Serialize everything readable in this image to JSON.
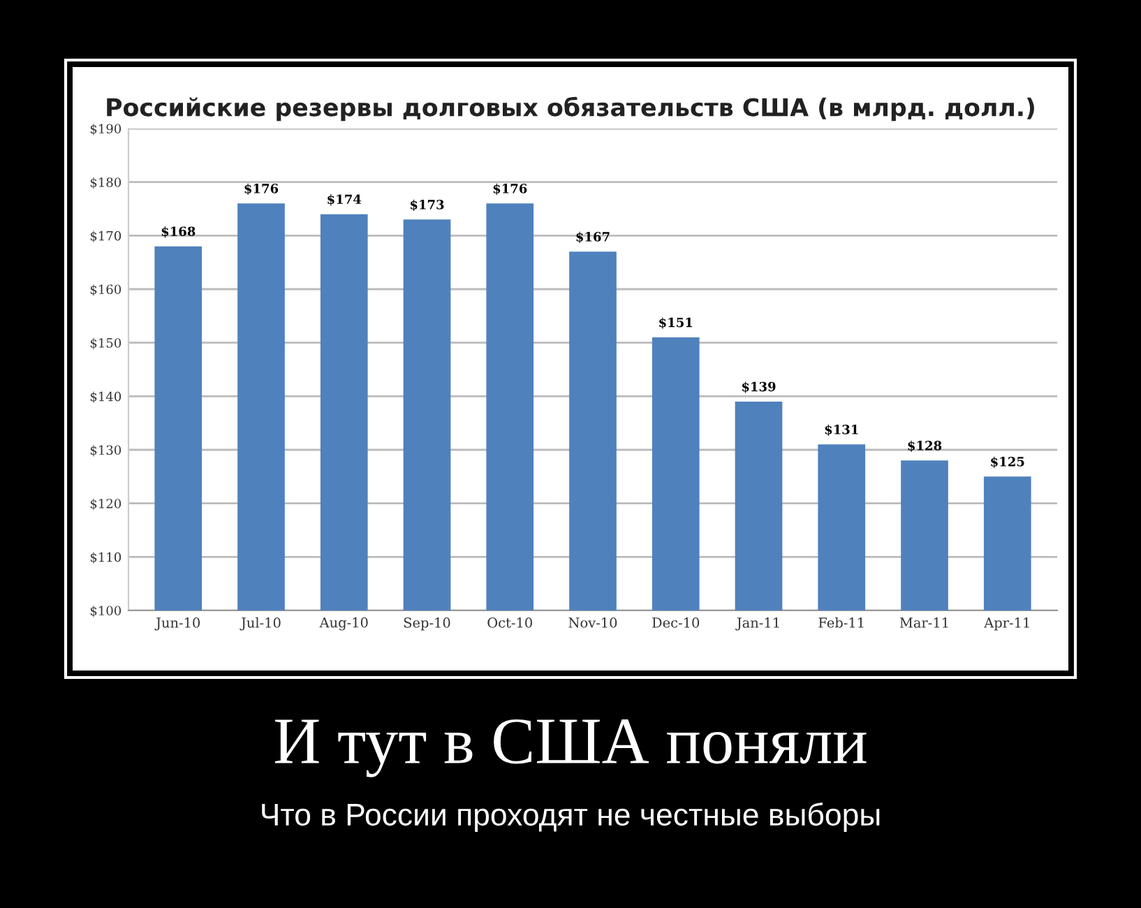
{
  "chart_data": {
    "type": "bar",
    "title": "Российские резервы долговых обязательств США (в млрд. долл.)",
    "categories": [
      "Jun-10",
      "Jul-10",
      "Aug-10",
      "Sep-10",
      "Oct-10",
      "Nov-10",
      "Dec-10",
      "Jan-11",
      "Feb-11",
      "Mar-11",
      "Apr-11"
    ],
    "values": [
      168,
      176,
      174,
      173,
      176,
      167,
      151,
      139,
      131,
      128,
      125
    ],
    "value_labels": [
      "$168",
      "$176",
      "$174",
      "$173",
      "$176",
      "$167",
      "$151",
      "$139",
      "$131",
      "$128",
      "$125"
    ],
    "color": "#4f81bd",
    "ylim": [
      100,
      190
    ],
    "yticks": [
      {
        "value": 100,
        "label": "$100"
      },
      {
        "value": 110,
        "label": "$110"
      },
      {
        "value": 120,
        "label": "$120"
      },
      {
        "value": 130,
        "label": "$130"
      },
      {
        "value": 140,
        "label": "$140"
      },
      {
        "value": 150,
        "label": "$150"
      },
      {
        "value": 160,
        "label": "$160"
      },
      {
        "value": 170,
        "label": "$170"
      },
      {
        "value": 180,
        "label": "$180"
      },
      {
        "value": 190,
        "label": "$190"
      }
    ],
    "grid": "y",
    "annotations": [
      "И тут в США поняли",
      "Что в России проходят не честные выборы"
    ]
  }
}
